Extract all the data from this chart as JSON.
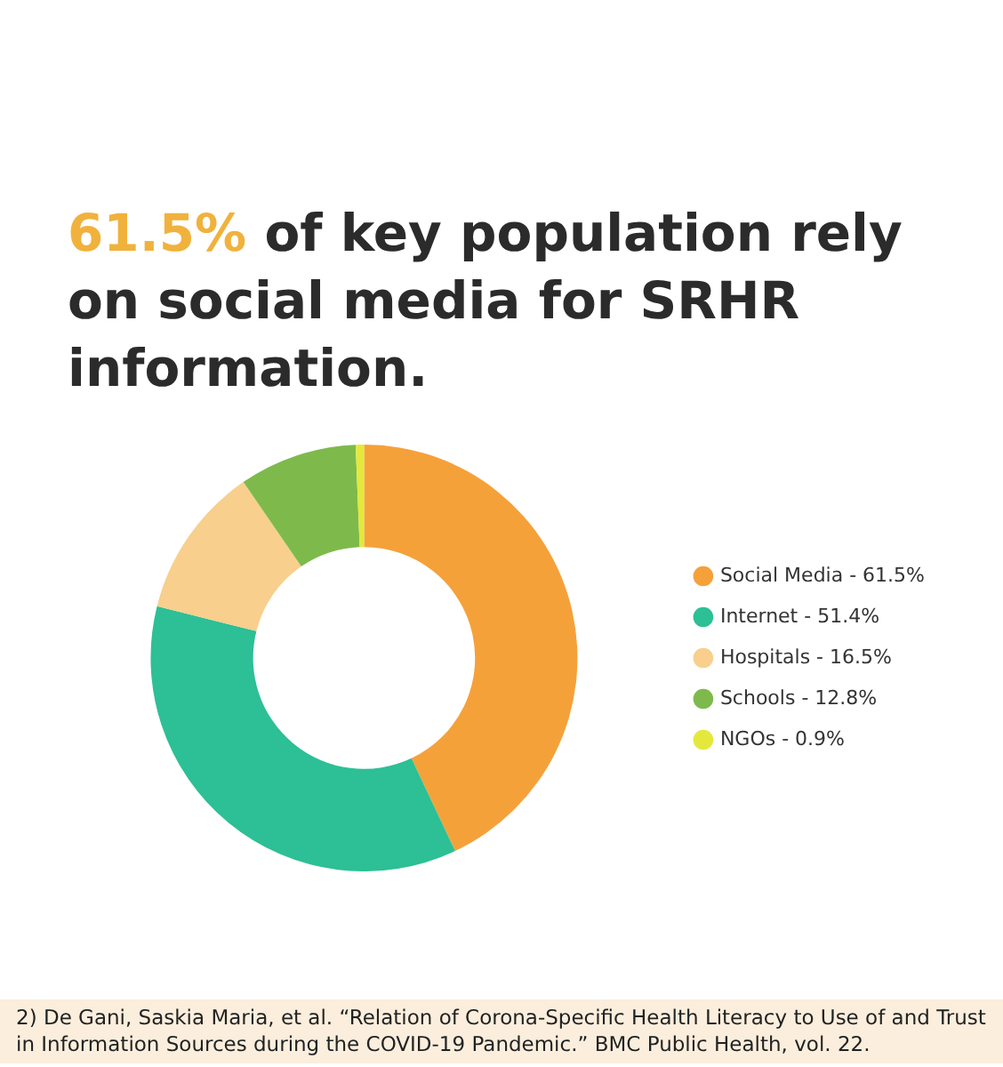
{
  "chart_data": {
    "type": "donut",
    "title": "61.5% of key population rely on social media for SRHR information.",
    "categories": [
      "Social Media - 61.5%",
      "Internet - 51.4%",
      "Hospitals - 16.5%",
      "Schools - 12.8%",
      "NGOs - 0.9%"
    ],
    "values": [
      42.98,
      35.92,
      11.53,
      8.94,
      0.63
    ],
    "colors": [
      "#f5a13a",
      "#2dbf95",
      "#f8cf8c",
      "#7dba4b",
      "#e5e83c"
    ],
    "legend": "right",
    "annotations": [
      "2) De Gani, Saskia Maria, et al. “Relation of Corona-Specific Health Literacy to Use of and Trust in Information Sources during the COVID-19 Pandemic.” BMC Public Health, vol. 22."
    ]
  }
}
